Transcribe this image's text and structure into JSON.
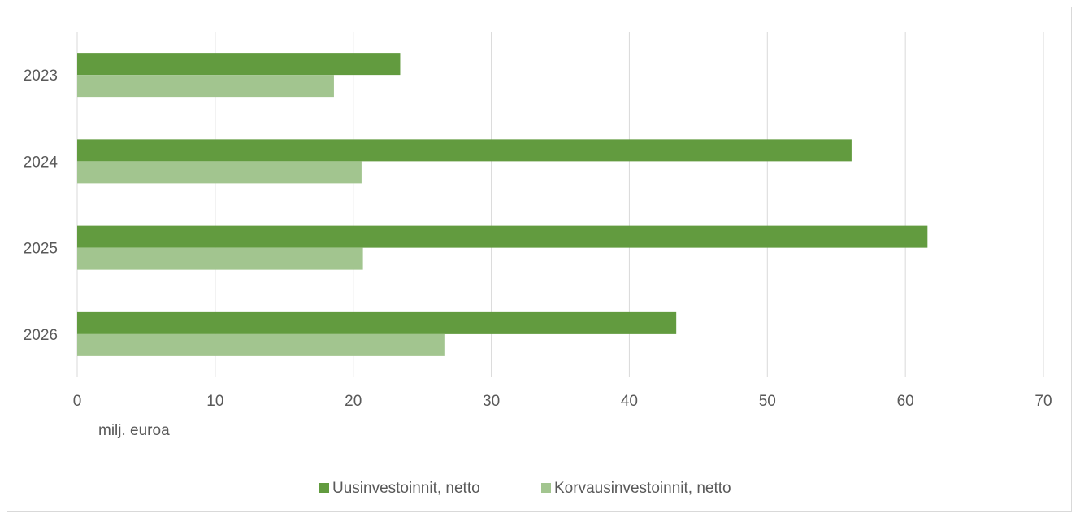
{
  "chart_data": {
    "type": "bar",
    "orientation": "horizontal",
    "categories": [
      "2023",
      "2024",
      "2025",
      "2026"
    ],
    "series": [
      {
        "name": "Uusinvestoinnit, netto",
        "color": "#629b3f",
        "values": [
          23.4,
          56.1,
          61.6,
          43.4
        ]
      },
      {
        "name": "Korvausinvestoinnit, netto",
        "color": "#a2c58f",
        "values": [
          18.6,
          20.6,
          20.7,
          26.6
        ]
      }
    ],
    "xlim": [
      0,
      70
    ],
    "xticks": [
      "0",
      "10",
      "20",
      "30",
      "40",
      "50",
      "60",
      "70"
    ],
    "xlabel": "milj. euroa",
    "ylabel": "",
    "title": "",
    "grid": "vertical",
    "legend_position": "bottom"
  }
}
